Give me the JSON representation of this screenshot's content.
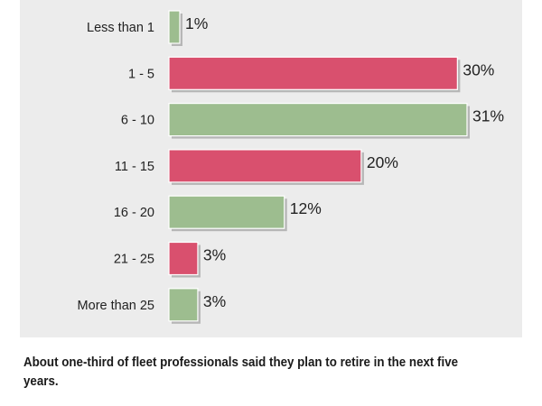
{
  "chart_data": {
    "type": "bar",
    "orientation": "horizontal",
    "categories": [
      "Less than 1",
      "1 - 5",
      "6 - 10",
      "11 - 15",
      "16 - 20",
      "21 - 25",
      "More than 25"
    ],
    "values": [
      1,
      30,
      31,
      20,
      12,
      3,
      3
    ],
    "value_labels": [
      "1%",
      "30%",
      "31%",
      "20%",
      "12%",
      "3%",
      "3%"
    ],
    "bar_colors": [
      "#9dbd8f",
      "#d9506e",
      "#9dbd8f",
      "#d9506e",
      "#9dbd8f",
      "#d9506e",
      "#9dbd8f"
    ],
    "xlim": [
      0,
      31
    ],
    "grid": false,
    "legend": "none",
    "colors": {
      "green": "#9dbd8f",
      "red": "#d9506e",
      "panel_background": "#ececec"
    }
  },
  "caption": "About one-third of fleet professionals said they plan to retire in the next five years."
}
